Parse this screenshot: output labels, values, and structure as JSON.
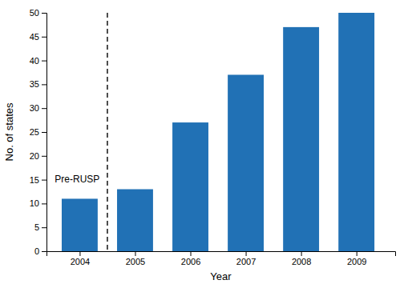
{
  "chart_data": {
    "type": "bar",
    "x": [
      2004,
      2005,
      2006,
      2007,
      2008,
      2009
    ],
    "values": [
      11,
      13,
      27,
      37,
      47,
      50
    ],
    "color": "#2171b5",
    "x_label": "Year",
    "y_label": "No. of states",
    "xlim": [
      2003.4,
      2009.7
    ],
    "xticks": [
      2004,
      2005,
      2006,
      2007,
      2008,
      2009
    ],
    "ylim": [
      0,
      50
    ],
    "yticks": [
      0,
      5,
      10,
      15,
      20,
      25,
      30,
      35,
      40,
      45,
      50
    ],
    "grid": false,
    "vlines": [
      {
        "x": 2004.5,
        "line_style": "dashed",
        "color": "#222222"
      }
    ],
    "annotations": [
      {
        "text": "Pre-RUSP",
        "x": 2003.55,
        "y": 15
      }
    ]
  }
}
